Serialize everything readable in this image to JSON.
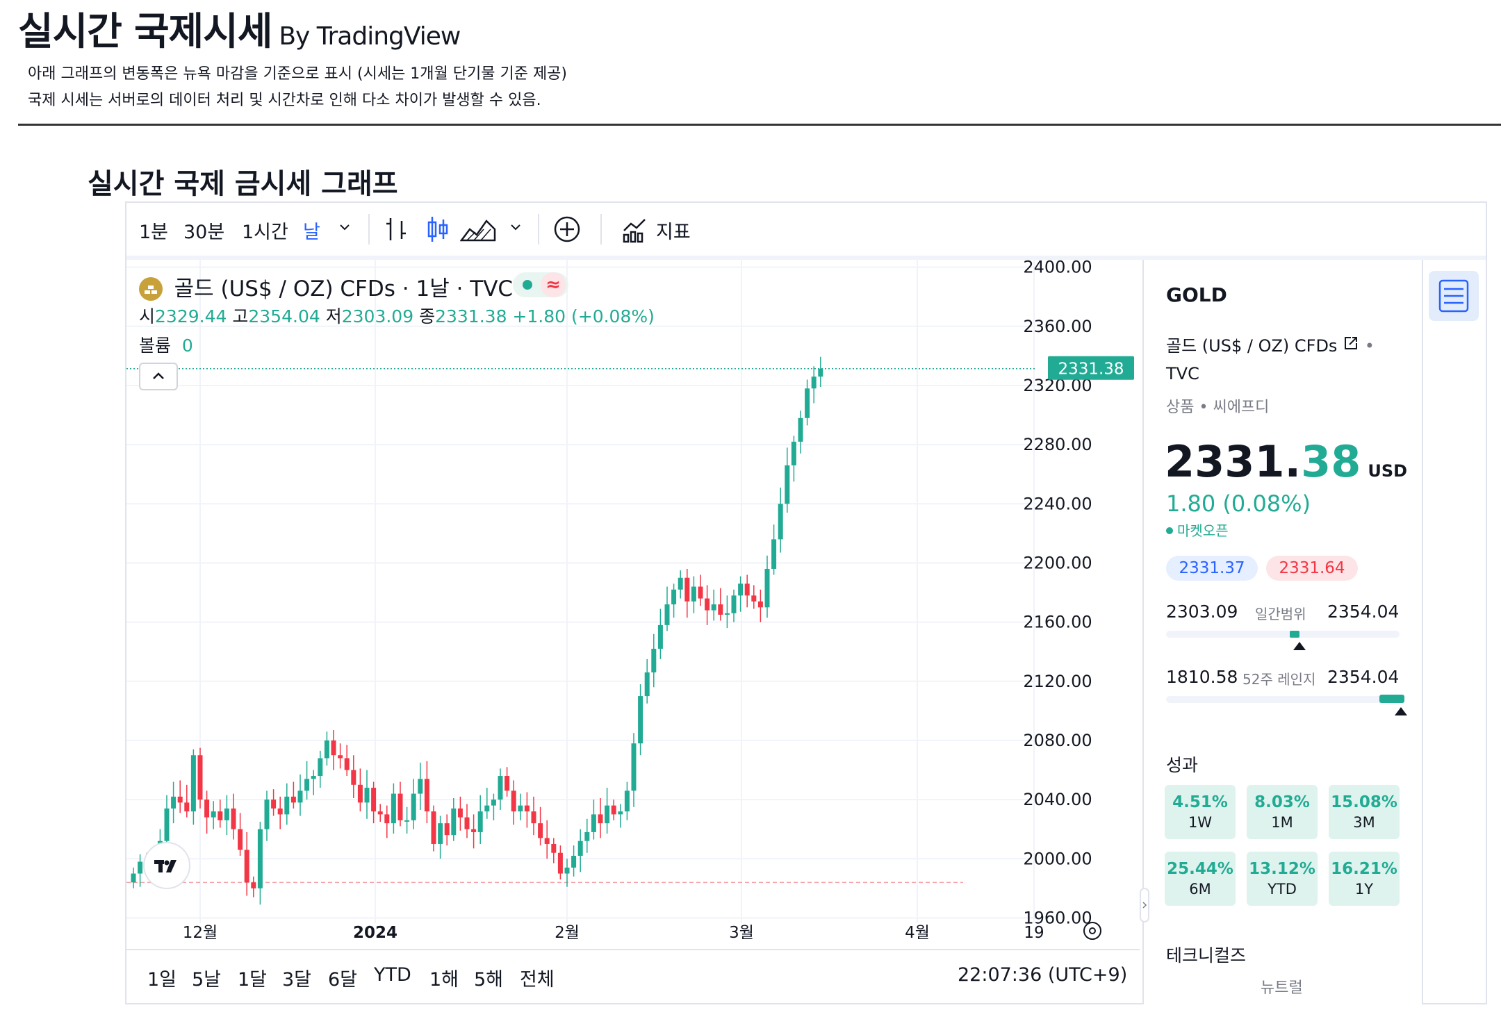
{
  "header": {
    "title": "실시간 국제시세",
    "by": "By TradingView",
    "note1": "아래 그래프의 변동폭은 뉴욕 마감을 기준으로 표시 (시세는 1개월 단기물 기준 제공)",
    "note2": "국제 시세는 서버로의 데이터 처리 및 시간차로 인해 다소 차이가 발생할 수 있음.",
    "section_title": "실시간 국제 금시세 그래프"
  },
  "toolbar": {
    "intervals": [
      "1분",
      "30분",
      "1시간",
      "날"
    ],
    "active_interval": "날",
    "indicators_label": "지표",
    "icons": [
      "chevron-down-icon",
      "bar-chart-icon",
      "candles-icon",
      "area-chart-icon",
      "chevron-down-icon",
      "plus-circle-icon",
      "indicators-icon"
    ]
  },
  "legend": {
    "symbol": "골드 (US$ / OZ) CFDs · 1날 · TVC",
    "open_label": "시",
    "open": "2329.44",
    "high_label": "고",
    "high": "2354.04",
    "low_label": "저",
    "low": "2303.09",
    "close_label": "종",
    "close": "2331.38",
    "change": "+1.80 (+0.08%)",
    "volume_label": "볼륨",
    "volume": "0",
    "status_badge": "≈"
  },
  "chart_data": {
    "type": "candlestick",
    "price_tag": "2331.38",
    "y_ticks": [
      "2400.00",
      "2360.00",
      "2320.00",
      "2280.00",
      "2240.00",
      "2200.00",
      "2160.00",
      "2120.00",
      "2080.00",
      "2040.00",
      "2000.00",
      "1960.00"
    ],
    "ylim": [
      1940,
      2405
    ],
    "x_ticks": [
      "12월",
      "2024",
      "2월",
      "3월",
      "4월",
      "19"
    ],
    "closes": [
      1990,
      1998,
      1994,
      1996,
      2012,
      2034,
      2042,
      2038,
      2032,
      2070,
      2040,
      2028,
      2032,
      2026,
      2034,
      2020,
      2006,
      1984,
      1980,
      2020,
      2040,
      2034,
      2030,
      2042,
      2038,
      2046,
      2054,
      2056,
      2068,
      2080,
      2070,
      2068,
      2060,
      2050,
      2038,
      2048,
      2032,
      2030,
      2024,
      2044,
      2026,
      2026,
      2044,
      2054,
      2032,
      2010,
      2024,
      2016,
      2034,
      2028,
      2020,
      2018,
      2032,
      2036,
      2040,
      2056,
      2046,
      2032,
      2036,
      2032,
      2024,
      2014,
      2010,
      2004,
      1990,
      1994,
      2002,
      2012,
      2018,
      2030,
      2024,
      2036,
      2030,
      2032,
      2046,
      2078,
      2110,
      2126,
      2142,
      2158,
      2172,
      2182,
      2190,
      2174,
      2184,
      2176,
      2168,
      2172,
      2165,
      2166,
      2178,
      2186,
      2178,
      2174,
      2170,
      2196,
      2216,
      2240,
      2266,
      2282,
      2298,
      2318,
      2326,
      2331.38
    ],
    "current_line": 2331.38,
    "baseline": 1984
  },
  "bottom": {
    "ranges": [
      "1일",
      "5날",
      "1달",
      "3달",
      "6달",
      "YTD",
      "1해",
      "5해",
      "전체"
    ],
    "time": "22:07:36 (UTC+9)"
  },
  "side": {
    "ticker": "GOLD",
    "name": "골드 (US$ / OZ) CFDs",
    "exchange": "TVC",
    "cat1": "상품",
    "cat2": "씨에프디",
    "price_int": "2331.",
    "price_dec": "38",
    "currency": "USD",
    "change": "1.80 (0.08%)",
    "market_status": "마켓오픈",
    "bid": "2331.37",
    "ask": "2331.64",
    "day_low": "2303.09",
    "day_range_label": "일간범위",
    "day_high": "2354.04",
    "day_range_position": 0.55,
    "low52": "1810.58",
    "range52_label": "52주 레인지",
    "high52": "2354.04",
    "range52_position": 0.98,
    "performance_label": "성과",
    "performance": [
      {
        "value": "4.51%",
        "label": "1W"
      },
      {
        "value": "8.03%",
        "label": "1M"
      },
      {
        "value": "15.08%",
        "label": "3M"
      },
      {
        "value": "25.44%",
        "label": "6M"
      },
      {
        "value": "13.12%",
        "label": "YTD"
      },
      {
        "value": "16.21%",
        "label": "1Y"
      }
    ],
    "technicals_label": "테크니컬즈",
    "technicals_value": "뉴트럴"
  },
  "colors": {
    "up": "#22ab94",
    "down": "#f23645",
    "accent": "#2962ff"
  }
}
